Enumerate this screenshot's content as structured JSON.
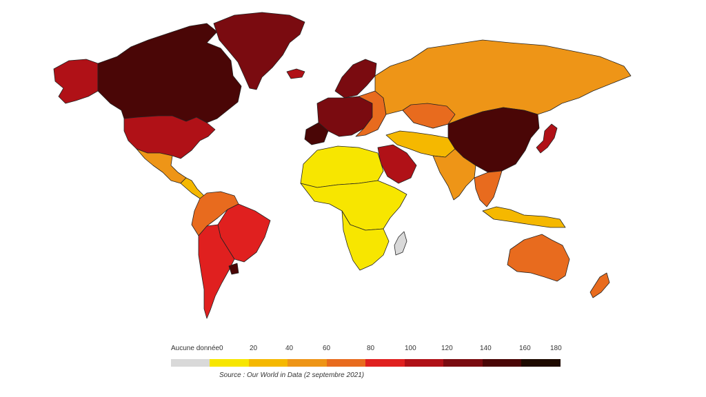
{
  "legend": {
    "no_data_label": "Aucune donnée",
    "ticks": [
      "0",
      "20",
      "40",
      "60",
      "80",
      "100",
      "120",
      "140",
      "160",
      "180"
    ],
    "no_data_color": "#d9d9d9",
    "bins": [
      {
        "from": 0,
        "to": 20,
        "color": "#f7e600"
      },
      {
        "from": 20,
        "to": 40,
        "color": "#f5b800"
      },
      {
        "from": 40,
        "to": 60,
        "color": "#ee9517"
      },
      {
        "from": 60,
        "to": 80,
        "color": "#e86b1e"
      },
      {
        "from": 80,
        "to": 100,
        "color": "#e0201f"
      },
      {
        "from": 100,
        "to": 120,
        "color": "#b01117"
      },
      {
        "from": 120,
        "to": 140,
        "color": "#7a0b10"
      },
      {
        "from": 140,
        "to": 160,
        "color": "#4a0606"
      },
      {
        "from": 160,
        "to": 180,
        "color": "#1e0a00"
      }
    ]
  },
  "source": "Source : Our World in Data (2 septembre 2021)",
  "regions": [
    {
      "name": "alaska",
      "color": "#b01117"
    },
    {
      "name": "canada",
      "color": "#4a0606"
    },
    {
      "name": "greenland",
      "color": "#7a0b10"
    },
    {
      "name": "usa",
      "color": "#b01117"
    },
    {
      "name": "mexico",
      "color": "#ee9517"
    },
    {
      "name": "central-america",
      "color": "#f5b800"
    },
    {
      "name": "brazil",
      "color": "#e0201f"
    },
    {
      "name": "andes-north",
      "color": "#e86b1e"
    },
    {
      "name": "chile-argentina",
      "color": "#e0201f"
    },
    {
      "name": "uruguay",
      "color": "#4a0606"
    },
    {
      "name": "western-europe",
      "color": "#7a0b10"
    },
    {
      "name": "scandinavia",
      "color": "#7a0b10"
    },
    {
      "name": "iberia",
      "color": "#4a0606"
    },
    {
      "name": "eastern-europe",
      "color": "#e86b1e"
    },
    {
      "name": "russia",
      "color": "#ee9517"
    },
    {
      "name": "north-africa",
      "color": "#f7e600"
    },
    {
      "name": "sub-saharan-africa",
      "color": "#f7e600"
    },
    {
      "name": "southern-africa",
      "color": "#f7e600"
    },
    {
      "name": "madagascar",
      "color": "#d9d9d9"
    },
    {
      "name": "arabia",
      "color": "#b01117"
    },
    {
      "name": "iran-central-asia",
      "color": "#f5b800"
    },
    {
      "name": "kazakhstan",
      "color": "#e86b1e"
    },
    {
      "name": "india",
      "color": "#ee9517"
    },
    {
      "name": "china",
      "color": "#4a0606"
    },
    {
      "name": "japan",
      "color": "#b01117"
    },
    {
      "name": "southeast-asia",
      "color": "#e86b1e"
    },
    {
      "name": "indonesia",
      "color": "#f5b800"
    },
    {
      "name": "australia",
      "color": "#e86b1e"
    },
    {
      "name": "new-zealand",
      "color": "#e86b1e"
    },
    {
      "name": "iceland",
      "color": "#b01117"
    }
  ]
}
